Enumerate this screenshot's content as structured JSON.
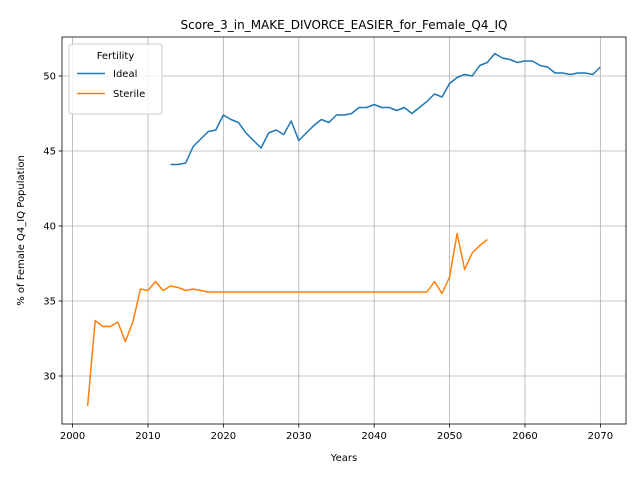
{
  "chart_data": {
    "type": "line",
    "title": "Score_3_in_MAKE_DIVORCE_EASIER_for_Female_Q4_IQ",
    "xlabel": "Years",
    "ylabel": "% of Female Q4_IQ Population",
    "xlim": [
      1998.6,
      2073.4
    ],
    "ylim": [
      26.8,
      52.6
    ],
    "xticks": [
      2000,
      2010,
      2020,
      2030,
      2040,
      2050,
      2060,
      2070
    ],
    "yticks": [
      30,
      35,
      40,
      45,
      50
    ],
    "grid": true,
    "legend": {
      "title": "Fertility",
      "placement": "top-left"
    },
    "series": [
      {
        "name": "Ideal",
        "color": "#1f77b4",
        "x": [
          2013,
          2014,
          2015,
          2016,
          2017,
          2018,
          2019,
          2020,
          2021,
          2022,
          2023,
          2024,
          2025,
          2026,
          2027,
          2028,
          2029,
          2030,
          2031,
          2032,
          2033,
          2034,
          2035,
          2036,
          2037,
          2038,
          2039,
          2040,
          2041,
          2042,
          2043,
          2044,
          2045,
          2046,
          2047,
          2048,
          2049,
          2050,
          2051,
          2052,
          2053,
          2054,
          2055,
          2056,
          2057,
          2058,
          2059,
          2060,
          2061,
          2062,
          2063,
          2064,
          2065,
          2066,
          2067,
          2068,
          2069,
          2070
        ],
        "y": [
          44.1,
          44.1,
          44.2,
          45.3,
          45.8,
          46.3,
          46.4,
          47.4,
          47.1,
          46.9,
          46.2,
          45.7,
          45.2,
          46.2,
          46.4,
          46.1,
          47.0,
          45.7,
          46.2,
          46.7,
          47.1,
          46.9,
          47.4,
          47.4,
          47.5,
          47.9,
          47.9,
          48.1,
          47.9,
          47.9,
          47.7,
          47.9,
          47.5,
          47.9,
          48.3,
          48.8,
          48.6,
          49.5,
          49.9,
          50.1,
          50.0,
          50.7,
          50.9,
          51.5,
          51.2,
          51.1,
          50.9,
          51.0,
          51.0,
          50.7,
          50.6,
          50.2,
          50.2,
          50.1,
          50.2,
          50.2,
          50.1,
          50.6
        ]
      },
      {
        "name": "Sterile",
        "color": "#ff7f0e",
        "x": [
          2002,
          2003,
          2004,
          2005,
          2006,
          2007,
          2008,
          2009,
          2010,
          2011,
          2012,
          2013,
          2014,
          2015,
          2016,
          2017,
          2018,
          2019,
          2020,
          2021,
          2022,
          2023,
          2024,
          2025,
          2026,
          2027,
          2028,
          2029,
          2030,
          2031,
          2032,
          2033,
          2034,
          2035,
          2036,
          2037,
          2038,
          2039,
          2040,
          2041,
          2042,
          2043,
          2044,
          2045,
          2046,
          2047,
          2048,
          2049,
          2050,
          2051,
          2052,
          2053,
          2054,
          2055
        ],
        "y": [
          28.0,
          33.7,
          33.3,
          33.3,
          33.6,
          32.3,
          33.6,
          35.8,
          35.7,
          36.3,
          35.7,
          36.0,
          35.9,
          35.7,
          35.8,
          35.7,
          35.6,
          35.6,
          35.6,
          35.6,
          35.6,
          35.6,
          35.6,
          35.6,
          35.6,
          35.6,
          35.6,
          35.6,
          35.6,
          35.6,
          35.6,
          35.6,
          35.6,
          35.6,
          35.6,
          35.6,
          35.6,
          35.6,
          35.6,
          35.6,
          35.6,
          35.6,
          35.6,
          35.6,
          35.6,
          35.6,
          36.3,
          35.5,
          36.6,
          39.5,
          37.1,
          38.2,
          38.7,
          39.1
        ]
      }
    ]
  }
}
